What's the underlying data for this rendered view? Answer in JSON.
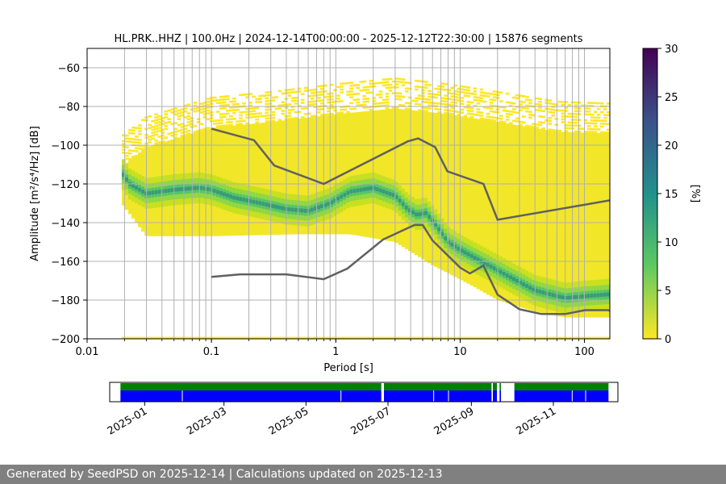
{
  "chart_data": {
    "type": "heatmap",
    "title": "HL.PRK..HHZ | 100.0Hz | 2024-12-14T00:00:00 - 2025-12-12T22:30:00 | 15876 segments",
    "xlabel": "Period [s]",
    "ylabel": "Amplitude [m²/s⁴/Hz] [dB]",
    "xscale": "log",
    "xlim": [
      0.01,
      160
    ],
    "ylim": [
      -200,
      -50
    ],
    "xticks": [
      {
        "value": 0.01,
        "label": "0.01"
      },
      {
        "value": 0.1,
        "label": "0.1"
      },
      {
        "value": 1,
        "label": "1"
      },
      {
        "value": 10,
        "label": "10"
      },
      {
        "value": 100,
        "label": "100"
      }
    ],
    "yticks": [
      -60,
      -80,
      -100,
      -120,
      -140,
      -160,
      -180,
      -200
    ],
    "grid": true,
    "colormap": "viridis_r",
    "colorbar": {
      "label": "[%]",
      "min": 0,
      "max": 30,
      "ticks": [
        0,
        5,
        10,
        15,
        20,
        25,
        30
      ]
    },
    "psd_mode": {
      "name": "",
      "color": "#3a9a7a",
      "points": [
        [
          0.019,
          -114
        ],
        [
          0.022,
          -120
        ],
        [
          0.03,
          -125
        ],
        [
          0.05,
          -123
        ],
        [
          0.08,
          -122
        ],
        [
          0.1,
          -123
        ],
        [
          0.15,
          -127
        ],
        [
          0.25,
          -130
        ],
        [
          0.4,
          -133
        ],
        [
          0.6,
          -134
        ],
        [
          0.9,
          -130
        ],
        [
          1.3,
          -124
        ],
        [
          2,
          -122
        ],
        [
          3,
          -126
        ],
        [
          3.8,
          -133
        ],
        [
          4.5,
          -136
        ],
        [
          5.3,
          -135
        ],
        [
          6.2,
          -140
        ],
        [
          8,
          -150
        ],
        [
          10,
          -154
        ],
        [
          13,
          -158
        ],
        [
          17,
          -162
        ],
        [
          25,
          -168
        ],
        [
          40,
          -175
        ],
        [
          70,
          -179
        ],
        [
          100,
          -178
        ],
        [
          160,
          -177
        ]
      ]
    },
    "series": [
      {
        "name": "",
        "color": "#606060",
        "x": [
          0.1,
          0.22,
          0.32,
          0.8,
          3.8,
          4.6,
          6.3,
          7.9,
          15.4,
          20,
          160
        ],
        "y": [
          -91.5,
          -97.4,
          -110.5,
          -120,
          -98,
          -96.5,
          -101,
          -113.5,
          -120,
          -138.5,
          -128.5
        ]
      },
      {
        "name": "",
        "color": "#606060",
        "x": [
          0.1,
          0.17,
          0.4,
          0.8,
          1.24,
          2.4,
          4.3,
          5.0,
          6.0,
          10,
          12,
          15.4,
          20,
          30,
          45,
          70,
          101,
          154,
          160
        ],
        "y": [
          -168,
          -166.7,
          -166.7,
          -169.2,
          -163.7,
          -148.7,
          -141.2,
          -141.2,
          -149.2,
          -163.2,
          -166.2,
          -162.2,
          -177.2,
          -184.7,
          -187.2,
          -187.2,
          -185.2,
          -185.2,
          -185.4
        ]
      }
    ]
  },
  "availability": {
    "date_ticks": [
      "2025-01",
      "2025-03",
      "2025-05",
      "2025-07",
      "2025-09",
      "2025-11"
    ],
    "start": "2024-12-14",
    "end": "2025-12-12",
    "data_color": "#0000ff",
    "gap_marker_color": "#008000",
    "segments": [
      [
        "2024-12-14",
        "2025-06-26"
      ],
      [
        "2025-06-28",
        "2025-09-16"
      ],
      [
        "2025-09-17",
        "2025-09-20"
      ],
      [
        "2025-09-22",
        "2025-09-23"
      ],
      [
        "2025-10-03",
        "2025-12-12"
      ]
    ]
  },
  "footer": {
    "text": "Generated by SeedPSD on 2025-12-14 | Calculations updated on 2025-12-13"
  }
}
